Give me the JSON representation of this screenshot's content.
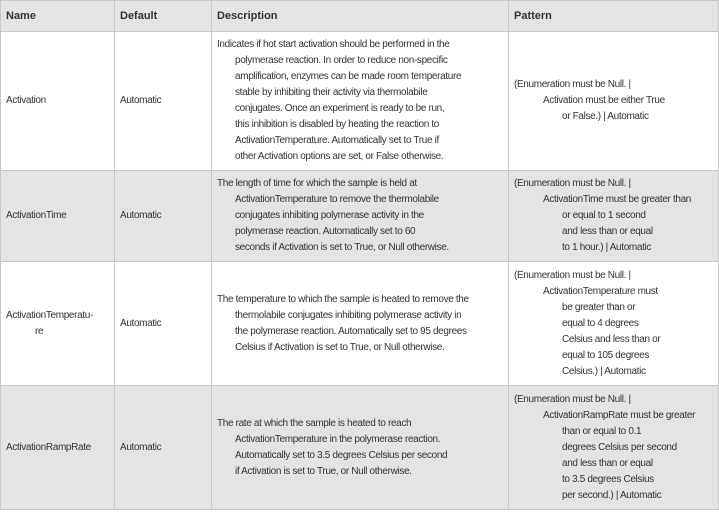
{
  "headers": [
    "Name",
    "Default",
    "Description",
    "Pattern"
  ],
  "rows": [
    {
      "name": [
        "Activation"
      ],
      "default": "Automatic",
      "description": [
        "Indicates if hot start activation should be performed in the",
        "polymerase reaction. In order to reduce non-specific",
        "amplification, enzymes can be made room temperature",
        "stable by inhibiting their activity via thermolabile",
        "conjugates. Once an experiment is ready to be run,",
        "this inhibition is disabled by heating the reaction to",
        "ActivationTemperature.  Automatically set to True if",
        "other Activation options are set, or False otherwise."
      ],
      "pattern": [
        "(Enumeration must be Null. |",
        "Activation must be either True",
        "or False.) | Automatic"
      ]
    },
    {
      "name": [
        "ActivationTime"
      ],
      "default": "Automatic",
      "description": [
        "The length of time for which the sample is held at",
        "ActivationTemperature to remove the thermolabile",
        "conjugates inhibiting polymerase activity in the",
        "polymerase reaction.  Automatically set to 60",
        "seconds if Activation is set to True, or Null otherwise."
      ],
      "pattern": [
        "(Enumeration must be Null. |",
        "ActivationTime must be greater than",
        "or equal to 1 second",
        "and less than or equal",
        "to 1 hour.) | Automatic"
      ]
    },
    {
      "name": [
        "ActivationTemperatu-",
        "re"
      ],
      "default": "Automatic",
      "description": [
        "The temperature to which the sample is heated to remove the",
        "thermolabile conjugates inhibiting polymerase activity in",
        "the polymerase reaction.  Automatically set to 95 degrees",
        "Celsius if Activation is set to True, or Null otherwise."
      ],
      "pattern": [
        "(Enumeration must be Null. |",
        "ActivationTemperature must",
        "be greater than or",
        "equal to 4 degrees",
        "Celsius and less than or",
        "equal to 105 degrees",
        "Celsius.) | Automatic"
      ]
    },
    {
      "name": [
        "ActivationRampRate"
      ],
      "default": "Automatic",
      "description": [
        "The rate at which the sample is heated to reach",
        "ActivationTemperature in the polymerase reaction.",
        "Automatically set to 3.5 degrees Celsius per second",
        "if Activation is set to True, or Null otherwise."
      ],
      "pattern": [
        "(Enumeration must be Null. |",
        "ActivationRampRate must be greater",
        "than or equal to 0.1",
        "degrees Celsius per second",
        "and less than or equal",
        "to 3.5 degrees Celsius",
        "per second.) | Automatic"
      ]
    }
  ]
}
